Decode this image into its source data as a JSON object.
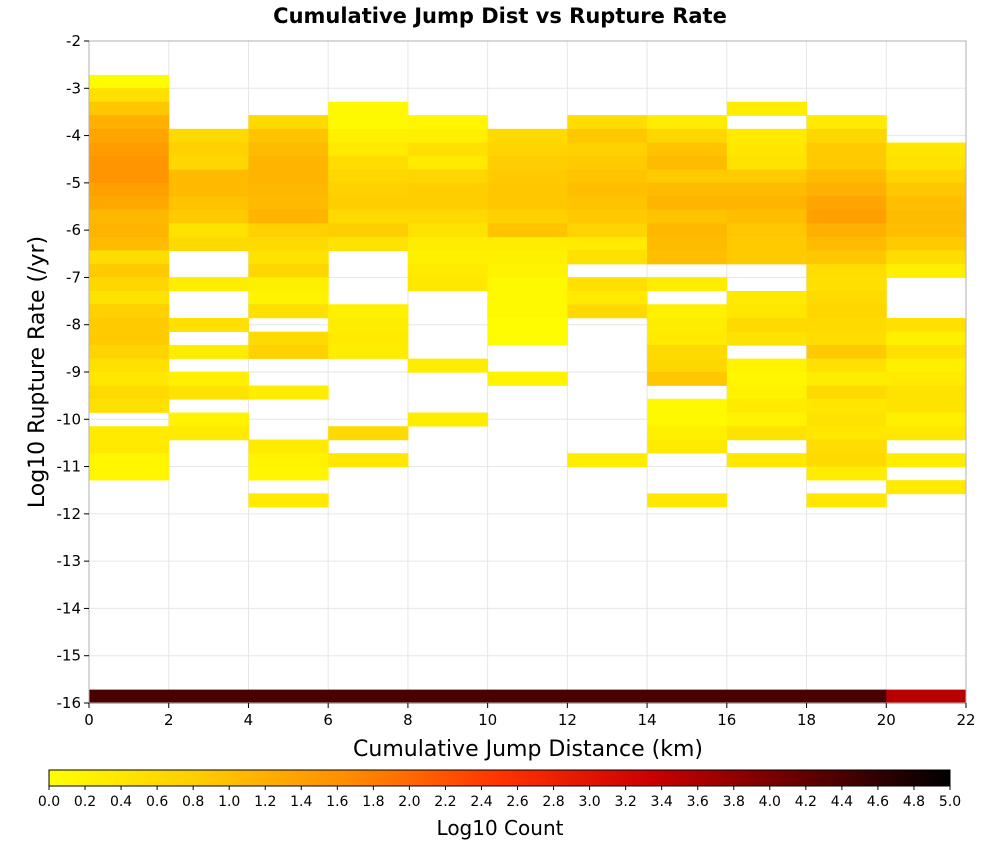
{
  "chart_data": {
    "type": "heatmap",
    "title": "Cumulative Jump Dist vs Rupture Rate",
    "xlabel": "Cumulative Jump Distance (km)",
    "ylabel": "Log10 Rupture Rate (/yr)",
    "xlim": [
      0,
      22
    ],
    "ylim": [
      -16,
      -2
    ],
    "x_ticks": [
      "0",
      "2",
      "4",
      "6",
      "8",
      "10",
      "12",
      "14",
      "16",
      "18",
      "20",
      "22"
    ],
    "y_ticks": [
      "-2",
      "-3",
      "-4",
      "-5",
      "-6",
      "-7",
      "-8",
      "-9",
      "-10",
      "-11",
      "-12",
      "-13",
      "-14",
      "-15",
      "-16"
    ],
    "grid": true,
    "bin_width_x": 2,
    "bin_height_y": 0.2857,
    "colorbar": {
      "label": "Log10 Count",
      "min": 0.0,
      "max": 5.0,
      "ticks": [
        "0.0",
        "0.2",
        "0.4",
        "0.6",
        "0.8",
        "1.0",
        "1.2",
        "1.4",
        "1.6",
        "1.8",
        "2.0",
        "2.2",
        "2.4",
        "2.6",
        "2.8",
        "3.0",
        "3.2",
        "3.4",
        "3.6",
        "3.8",
        "4.0",
        "4.2",
        "4.4",
        "4.6",
        "4.8",
        "5.0"
      ],
      "colors": [
        "#ffff00",
        "#ffcc00",
        "#ff8c00",
        "#ff3300",
        "#cc0000",
        "#660000",
        "#000000"
      ]
    },
    "columns": [
      {
        "x_start": 0,
        "cells": [
          [
            -2.86,
            0.05
          ],
          [
            -3.14,
            0.5
          ],
          [
            -3.43,
            0.9
          ],
          [
            -3.71,
            1.2
          ],
          [
            -4.0,
            1.35
          ],
          [
            -4.29,
            1.45
          ],
          [
            -4.57,
            1.55
          ],
          [
            -4.86,
            1.55
          ],
          [
            -5.14,
            1.4
          ],
          [
            -5.43,
            1.3
          ],
          [
            -5.71,
            1.1
          ],
          [
            -6.0,
            1.15
          ],
          [
            -6.29,
            1.05
          ],
          [
            -6.57,
            0.55
          ],
          [
            -6.86,
            0.85
          ],
          [
            -7.14,
            0.65
          ],
          [
            -7.43,
            0.45
          ],
          [
            -7.71,
            0.75
          ],
          [
            -8.0,
            0.85
          ],
          [
            -8.29,
            0.85
          ],
          [
            -8.57,
            0.7
          ],
          [
            -8.86,
            0.5
          ],
          [
            -9.14,
            0.4
          ],
          [
            -9.43,
            0.6
          ],
          [
            -9.71,
            0.5
          ],
          [
            -10.29,
            0.35
          ],
          [
            -10.57,
            0.35
          ],
          [
            -10.86,
            0.15
          ],
          [
            -11.14,
            0.15
          ],
          [
            -15.86,
            4.4
          ]
        ]
      },
      {
        "x_start": 2,
        "cells": [
          [
            -4.0,
            0.6
          ],
          [
            -4.29,
            0.75
          ],
          [
            -4.57,
            0.65
          ],
          [
            -4.86,
            1.05
          ],
          [
            -5.14,
            1.05
          ],
          [
            -5.43,
            0.95
          ],
          [
            -5.71,
            0.85
          ],
          [
            -6.0,
            0.45
          ],
          [
            -6.29,
            0.6
          ],
          [
            -7.14,
            0.3
          ],
          [
            -8.0,
            0.5
          ],
          [
            -8.57,
            0.3
          ],
          [
            -9.14,
            0.25
          ],
          [
            -9.43,
            0.45
          ],
          [
            -10.0,
            0.2
          ],
          [
            -10.29,
            0.35
          ],
          [
            -15.86,
            4.4
          ]
        ]
      },
      {
        "x_start": 4,
        "cells": [
          [
            -3.71,
            0.6
          ],
          [
            -4.0,
            0.95
          ],
          [
            -4.29,
            1.05
          ],
          [
            -4.57,
            1.15
          ],
          [
            -4.86,
            1.15
          ],
          [
            -5.14,
            1.1
          ],
          [
            -5.43,
            1.05
          ],
          [
            -5.71,
            1.15
          ],
          [
            -6.0,
            0.75
          ],
          [
            -6.29,
            0.6
          ],
          [
            -6.57,
            0.45
          ],
          [
            -6.86,
            0.65
          ],
          [
            -7.14,
            0.25
          ],
          [
            -7.43,
            0.2
          ],
          [
            -7.71,
            0.5
          ],
          [
            -8.29,
            0.6
          ],
          [
            -8.57,
            0.75
          ],
          [
            -9.43,
            0.3
          ],
          [
            -10.57,
            0.35
          ],
          [
            -10.86,
            0.2
          ],
          [
            -11.14,
            0.15
          ],
          [
            -11.71,
            0.35
          ],
          [
            -15.86,
            4.4
          ]
        ]
      },
      {
        "x_start": 6,
        "cells": [
          [
            -3.43,
            0.1
          ],
          [
            -3.71,
            0.1
          ],
          [
            -4.0,
            0.25
          ],
          [
            -4.29,
            0.35
          ],
          [
            -4.57,
            0.55
          ],
          [
            -4.86,
            0.65
          ],
          [
            -5.14,
            0.75
          ],
          [
            -5.43,
            0.8
          ],
          [
            -5.71,
            0.6
          ],
          [
            -6.0,
            0.8
          ],
          [
            -6.29,
            0.45
          ],
          [
            -7.71,
            0.25
          ],
          [
            -8.0,
            0.3
          ],
          [
            -8.29,
            0.35
          ],
          [
            -8.57,
            0.3
          ],
          [
            -10.29,
            0.6
          ],
          [
            -10.86,
            0.4
          ],
          [
            -15.86,
            4.4
          ]
        ]
      },
      {
        "x_start": 8,
        "cells": [
          [
            -3.71,
            0.15
          ],
          [
            -4.0,
            0.25
          ],
          [
            -4.29,
            0.5
          ],
          [
            -4.57,
            0.35
          ],
          [
            -4.86,
            0.65
          ],
          [
            -5.14,
            0.8
          ],
          [
            -5.43,
            0.8
          ],
          [
            -5.71,
            0.6
          ],
          [
            -6.0,
            0.45
          ],
          [
            -6.29,
            0.3
          ],
          [
            -6.57,
            0.25
          ],
          [
            -6.86,
            0.35
          ],
          [
            -7.14,
            0.4
          ],
          [
            -8.86,
            0.3
          ],
          [
            -10.0,
            0.3
          ],
          [
            -15.86,
            4.4
          ]
        ]
      },
      {
        "x_start": 10,
        "cells": [
          [
            -4.0,
            0.6
          ],
          [
            -4.29,
            0.7
          ],
          [
            -4.57,
            0.8
          ],
          [
            -4.86,
            0.85
          ],
          [
            -5.14,
            0.9
          ],
          [
            -5.43,
            0.9
          ],
          [
            -5.71,
            0.75
          ],
          [
            -6.0,
            0.95
          ],
          [
            -6.29,
            0.3
          ],
          [
            -6.57,
            0.25
          ],
          [
            -6.86,
            0.2
          ],
          [
            -7.14,
            0.1
          ],
          [
            -7.43,
            0.1
          ],
          [
            -7.71,
            0.1
          ],
          [
            -8.0,
            0.05
          ],
          [
            -8.29,
            0.05
          ],
          [
            -9.14,
            0.2
          ],
          [
            -15.86,
            4.4
          ]
        ]
      },
      {
        "x_start": 12,
        "cells": [
          [
            -3.71,
            0.55
          ],
          [
            -4.0,
            0.9
          ],
          [
            -4.29,
            0.75
          ],
          [
            -4.57,
            0.85
          ],
          [
            -4.86,
            0.95
          ],
          [
            -5.14,
            1.0
          ],
          [
            -5.43,
            0.95
          ],
          [
            -5.71,
            0.85
          ],
          [
            -6.0,
            0.7
          ],
          [
            -6.29,
            0.35
          ],
          [
            -6.57,
            0.5
          ],
          [
            -7.14,
            0.5
          ],
          [
            -7.43,
            0.35
          ],
          [
            -7.71,
            0.6
          ],
          [
            -10.86,
            0.3
          ],
          [
            -15.86,
            4.4
          ]
        ]
      },
      {
        "x_start": 14,
        "cells": [
          [
            -3.71,
            0.3
          ],
          [
            -4.0,
            0.65
          ],
          [
            -4.29,
            0.95
          ],
          [
            -4.57,
            1.05
          ],
          [
            -4.86,
            0.85
          ],
          [
            -5.14,
            1.05
          ],
          [
            -5.43,
            1.15
          ],
          [
            -5.71,
            0.95
          ],
          [
            -6.0,
            1.1
          ],
          [
            -6.29,
            1.05
          ],
          [
            -6.57,
            1.0
          ],
          [
            -7.14,
            0.3
          ],
          [
            -7.71,
            0.25
          ],
          [
            -8.0,
            0.3
          ],
          [
            -8.29,
            0.35
          ],
          [
            -8.57,
            0.6
          ],
          [
            -8.86,
            0.65
          ],
          [
            -9.14,
            0.9
          ],
          [
            -9.71,
            0.1
          ],
          [
            -10.0,
            0.1
          ],
          [
            -10.29,
            0.25
          ],
          [
            -10.57,
            0.35
          ],
          [
            -11.71,
            0.4
          ],
          [
            -15.86,
            4.4
          ]
        ]
      },
      {
        "x_start": 16,
        "cells": [
          [
            -3.43,
            0.3
          ],
          [
            -4.0,
            0.35
          ],
          [
            -4.29,
            0.4
          ],
          [
            -4.57,
            0.45
          ],
          [
            -4.86,
            0.85
          ],
          [
            -5.14,
            1.05
          ],
          [
            -5.43,
            1.15
          ],
          [
            -5.71,
            1.0
          ],
          [
            -6.0,
            0.9
          ],
          [
            -6.29,
            0.85
          ],
          [
            -6.57,
            0.85
          ],
          [
            -7.43,
            0.35
          ],
          [
            -7.71,
            0.4
          ],
          [
            -8.0,
            0.6
          ],
          [
            -8.29,
            0.45
          ],
          [
            -8.86,
            0.2
          ],
          [
            -9.14,
            0.15
          ],
          [
            -9.43,
            0.2
          ],
          [
            -9.71,
            0.35
          ],
          [
            -10.0,
            0.2
          ],
          [
            -10.29,
            0.45
          ],
          [
            -10.86,
            0.4
          ],
          [
            -15.86,
            4.4
          ]
        ]
      },
      {
        "x_start": 18,
        "cells": [
          [
            -3.71,
            0.35
          ],
          [
            -4.0,
            0.65
          ],
          [
            -4.29,
            0.85
          ],
          [
            -4.57,
            0.85
          ],
          [
            -4.86,
            1.05
          ],
          [
            -5.14,
            1.2
          ],
          [
            -5.43,
            1.35
          ],
          [
            -5.71,
            1.4
          ],
          [
            -6.0,
            1.2
          ],
          [
            -6.29,
            1.05
          ],
          [
            -6.57,
            0.9
          ],
          [
            -6.86,
            0.55
          ],
          [
            -7.14,
            0.5
          ],
          [
            -7.43,
            0.6
          ],
          [
            -7.71,
            0.65
          ],
          [
            -8.0,
            0.6
          ],
          [
            -8.29,
            0.55
          ],
          [
            -8.57,
            0.85
          ],
          [
            -8.86,
            0.5
          ],
          [
            -9.14,
            0.3
          ],
          [
            -9.43,
            0.6
          ],
          [
            -9.71,
            0.4
          ],
          [
            -10.0,
            0.45
          ],
          [
            -10.29,
            0.4
          ],
          [
            -10.57,
            0.55
          ],
          [
            -10.86,
            0.6
          ],
          [
            -11.14,
            0.3
          ],
          [
            -11.71,
            0.4
          ],
          [
            -15.86,
            4.4
          ]
        ]
      },
      {
        "x_start": 20,
        "cells": [
          [
            -4.29,
            0.4
          ],
          [
            -4.57,
            0.45
          ],
          [
            -4.86,
            0.7
          ],
          [
            -5.14,
            0.9
          ],
          [
            -5.43,
            1.0
          ],
          [
            -5.71,
            1.05
          ],
          [
            -6.0,
            1.0
          ],
          [
            -6.29,
            0.85
          ],
          [
            -6.57,
            0.55
          ],
          [
            -6.86,
            0.25
          ],
          [
            -8.0,
            0.5
          ],
          [
            -8.29,
            0.25
          ],
          [
            -8.57,
            0.5
          ],
          [
            -8.86,
            0.25
          ],
          [
            -9.14,
            0.35
          ],
          [
            -9.43,
            0.45
          ],
          [
            -9.71,
            0.45
          ],
          [
            -10.0,
            0.25
          ],
          [
            -10.29,
            0.4
          ],
          [
            -10.86,
            0.3
          ],
          [
            -11.43,
            0.35
          ],
          [
            -15.86,
            3.5
          ]
        ]
      }
    ]
  }
}
